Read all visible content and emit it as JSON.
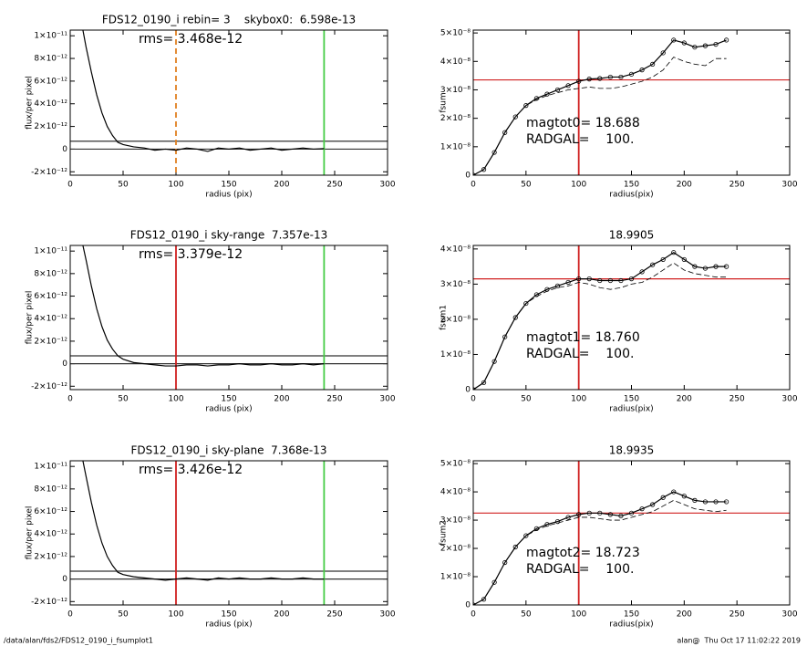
{
  "chart_data": [
    {
      "type": "line",
      "title": "FDS12_0190_i rebin= 3    skybox0:  6.598e-13",
      "annotations": [
        "rms= 3.468e-12"
      ],
      "xlabel": "radius (pix)",
      "ylabel": "flux/per pixel",
      "xlim": [
        0,
        300
      ],
      "xticks": [
        0,
        50,
        100,
        150,
        200,
        250,
        300
      ],
      "ylim": [
        -2.3e-12,
        1.05e-11
      ],
      "yticks": [
        {
          "value": -2e-12,
          "label": "-2×10⁻¹²"
        },
        0,
        {
          "value": 2e-12,
          "label": "2×10⁻¹²"
        },
        {
          "value": 4e-12,
          "label": "4×10⁻¹²"
        },
        {
          "value": 6e-12,
          "label": "6×10⁻¹²"
        },
        {
          "value": 8e-12,
          "label": "8×10⁻¹²"
        },
        {
          "value": 1e-11,
          "label": "1×10⁻¹¹"
        }
      ],
      "x": [
        12,
        15,
        20,
        25,
        30,
        35,
        40,
        45,
        50,
        60,
        70,
        80,
        90,
        100,
        110,
        120,
        130,
        140,
        150,
        160,
        170,
        180,
        190,
        200,
        210,
        220,
        230,
        240
      ],
      "series": [
        {
          "color": "#000000",
          "values": [
            1.05e-11,
            9e-12,
            6.8e-12,
            4.8e-12,
            3.2e-12,
            2e-12,
            1.2e-12,
            6e-13,
            4e-13,
            2e-13,
            1e-13,
            -1e-13,
            0,
            -1e-13,
            1e-13,
            0,
            -2e-13,
            1e-13,
            0,
            1e-13,
            -1e-13,
            0,
            1e-13,
            -1e-13,
            0,
            1e-13,
            0,
            5e-14
          ]
        }
      ],
      "hlines": [
        {
          "value": 7e-13,
          "color": "#333333"
        },
        {
          "value": 0,
          "color": "#333333"
        }
      ],
      "vlines": [
        {
          "value": 100,
          "color": "#e08020",
          "dash": true
        },
        {
          "value": 240,
          "color": "#44cc44"
        }
      ]
    },
    {
      "type": "line",
      "annotations": [
        "magtot0= 18.688",
        "RADGAL=    100."
      ],
      "xlabel": "radius(pix)",
      "ylabel": "fsum",
      "xlim": [
        0,
        300
      ],
      "xticks": [
        0,
        50,
        100,
        150,
        200,
        250,
        300
      ],
      "ylim": [
        0,
        5.1e-08
      ],
      "yticks": [
        0,
        {
          "value": 1e-08,
          "label": "1×10⁻⁸"
        },
        {
          "value": 2e-08,
          "label": "2×10⁻⁸"
        },
        {
          "value": 3e-08,
          "label": "3×10⁻⁸"
        },
        {
          "value": 4e-08,
          "label": "4×10⁻⁸"
        },
        {
          "value": 5e-08,
          "label": "5×10⁻⁸"
        }
      ],
      "x": [
        0,
        10,
        20,
        30,
        40,
        50,
        60,
        70,
        80,
        90,
        100,
        110,
        120,
        130,
        140,
        150,
        160,
        170,
        180,
        190,
        200,
        210,
        220,
        230,
        240
      ],
      "series": [
        {
          "color": "#000000",
          "marker": "circle",
          "values": [
            0,
            2e-09,
            8e-09,
            1.5e-08,
            2.05e-08,
            2.45e-08,
            2.7e-08,
            2.85e-08,
            3e-08,
            3.15e-08,
            3.3e-08,
            3.38e-08,
            3.4e-08,
            3.45e-08,
            3.45e-08,
            3.55e-08,
            3.7e-08,
            3.9e-08,
            4.3e-08,
            4.75e-08,
            4.65e-08,
            4.5e-08,
            4.55e-08,
            4.6e-08,
            4.75e-08
          ]
        },
        {
          "color": "#000000",
          "dash": true,
          "values": [
            0,
            2e-09,
            8e-09,
            1.5e-08,
            2.05e-08,
            2.45e-08,
            2.65e-08,
            2.8e-08,
            2.9e-08,
            3e-08,
            3.05e-08,
            3.1e-08,
            3.05e-08,
            3.05e-08,
            3.1e-08,
            3.2e-08,
            3.3e-08,
            3.45e-08,
            3.7e-08,
            4.15e-08,
            4e-08,
            3.9e-08,
            3.85e-08,
            4.1e-08,
            4.1e-08
          ]
        }
      ],
      "hlines": [
        {
          "value": 3.35e-08,
          "color": "#d02020"
        }
      ],
      "vlines": [
        {
          "value": 100,
          "color": "#d02020"
        }
      ]
    },
    {
      "type": "line",
      "title": "FDS12_0190_i sky-range  7.357e-13",
      "annotations": [
        "rms= 3.379e-12"
      ],
      "xlabel": "radius (pix)",
      "ylabel": "flux/per pixel",
      "xlim": [
        0,
        300
      ],
      "xticks": [
        0,
        50,
        100,
        150,
        200,
        250,
        300
      ],
      "ylim": [
        -2.3e-12,
        1.05e-11
      ],
      "yticks": [
        {
          "value": -2e-12,
          "label": "-2×10⁻¹²"
        },
        0,
        {
          "value": 2e-12,
          "label": "2×10⁻¹²"
        },
        {
          "value": 4e-12,
          "label": "4×10⁻¹²"
        },
        {
          "value": 6e-12,
          "label": "6×10⁻¹²"
        },
        {
          "value": 8e-12,
          "label": "8×10⁻¹²"
        },
        {
          "value": 1e-11,
          "label": "1×10⁻¹¹"
        }
      ],
      "x": [
        12,
        15,
        20,
        25,
        30,
        35,
        40,
        45,
        50,
        60,
        70,
        80,
        90,
        100,
        110,
        120,
        130,
        140,
        150,
        160,
        170,
        180,
        190,
        200,
        210,
        220,
        230,
        240
      ],
      "series": [
        {
          "color": "#000000",
          "values": [
            1.05e-11,
            9.2e-12,
            6.9e-12,
            4.9e-12,
            3.3e-12,
            2.1e-12,
            1.3e-12,
            7e-13,
            4e-13,
            1e-13,
            0,
            -1e-13,
            -2e-13,
            -2e-13,
            -1e-13,
            -1e-13,
            -2e-13,
            -1e-13,
            -1e-13,
            0,
            -1e-13,
            -1e-13,
            0,
            -1e-13,
            -1e-13,
            0,
            -1e-13,
            0
          ]
        }
      ],
      "hlines": [
        {
          "value": 7e-13,
          "color": "#333333"
        },
        {
          "value": 0,
          "color": "#333333"
        }
      ],
      "vlines": [
        {
          "value": 100,
          "color": "#d02020"
        },
        {
          "value": 240,
          "color": "#44cc44"
        }
      ]
    },
    {
      "type": "line",
      "title": "18.9905",
      "annotations": [
        "magtot1= 18.760",
        "RADGAL=    100."
      ],
      "xlabel": "radius(pix)",
      "ylabel": "fsum1",
      "xlim": [
        0,
        300
      ],
      "xticks": [
        0,
        50,
        100,
        150,
        200,
        250,
        300
      ],
      "ylim": [
        0,
        4.1e-08
      ],
      "yticks": [
        0,
        {
          "value": 1e-08,
          "label": "1×10⁻⁸"
        },
        {
          "value": 2e-08,
          "label": "2×10⁻⁸"
        },
        {
          "value": 3e-08,
          "label": "3×10⁻⁸"
        },
        {
          "value": 4e-08,
          "label": "4×10⁻⁸"
        }
      ],
      "x": [
        0,
        10,
        20,
        30,
        40,
        50,
        60,
        70,
        80,
        90,
        100,
        110,
        120,
        130,
        140,
        150,
        160,
        170,
        180,
        190,
        200,
        210,
        220,
        230,
        240
      ],
      "series": [
        {
          "color": "#000000",
          "marker": "circle",
          "values": [
            0,
            2e-09,
            8e-09,
            1.5e-08,
            2.05e-08,
            2.45e-08,
            2.7e-08,
            2.85e-08,
            2.95e-08,
            3.05e-08,
            3.15e-08,
            3.15e-08,
            3.1e-08,
            3.1e-08,
            3.1e-08,
            3.15e-08,
            3.35e-08,
            3.55e-08,
            3.7e-08,
            3.9e-08,
            3.7e-08,
            3.5e-08,
            3.45e-08,
            3.5e-08,
            3.5e-08
          ]
        },
        {
          "color": "#000000",
          "dash": true,
          "values": [
            0,
            2e-09,
            8e-09,
            1.5e-08,
            2.05e-08,
            2.45e-08,
            2.65e-08,
            2.8e-08,
            2.9e-08,
            2.95e-08,
            3.05e-08,
            3e-08,
            2.9e-08,
            2.85e-08,
            2.9e-08,
            3e-08,
            3.05e-08,
            3.2e-08,
            3.4e-08,
            3.6e-08,
            3.4e-08,
            3.3e-08,
            3.25e-08,
            3.2e-08,
            3.2e-08
          ]
        }
      ],
      "hlines": [
        {
          "value": 3.15e-08,
          "color": "#d02020"
        }
      ],
      "vlines": [
        {
          "value": 100,
          "color": "#d02020"
        }
      ]
    },
    {
      "type": "line",
      "title": "FDS12_0190_i sky-plane  7.368e-13",
      "annotations": [
        "rms= 3.426e-12"
      ],
      "xlabel": "radius (pix)",
      "ylabel": "flux/per pixel",
      "xlim": [
        0,
        300
      ],
      "xticks": [
        0,
        50,
        100,
        150,
        200,
        250,
        300
      ],
      "ylim": [
        -2.3e-12,
        1.05e-11
      ],
      "yticks": [
        {
          "value": -2e-12,
          "label": "-2×10⁻¹²"
        },
        0,
        {
          "value": 2e-12,
          "label": "2×10⁻¹²"
        },
        {
          "value": 4e-12,
          "label": "4×10⁻¹²"
        },
        {
          "value": 6e-12,
          "label": "6×10⁻¹²"
        },
        {
          "value": 8e-12,
          "label": "8×10⁻¹²"
        },
        {
          "value": 1e-11,
          "label": "1×10⁻¹¹"
        }
      ],
      "x": [
        12,
        15,
        20,
        25,
        30,
        35,
        40,
        45,
        50,
        60,
        70,
        80,
        90,
        100,
        110,
        120,
        130,
        140,
        150,
        160,
        170,
        180,
        190,
        200,
        210,
        220,
        230,
        240
      ],
      "series": [
        {
          "color": "#000000",
          "values": [
            1.05e-11,
            9.1e-12,
            6.8e-12,
            4.8e-12,
            3.2e-12,
            2e-12,
            1.2e-12,
            6e-13,
            4e-13,
            2e-13,
            1e-13,
            0,
            -1e-13,
            0,
            1e-13,
            0,
            -1e-13,
            1e-13,
            0,
            1e-13,
            0,
            0,
            1e-13,
            0,
            0,
            1e-13,
            0,
            0
          ]
        }
      ],
      "hlines": [
        {
          "value": 7e-13,
          "color": "#333333"
        },
        {
          "value": 0,
          "color": "#333333"
        }
      ],
      "vlines": [
        {
          "value": 100,
          "color": "#d02020"
        },
        {
          "value": 240,
          "color": "#44cc44"
        }
      ]
    },
    {
      "type": "line",
      "title": "18.9935",
      "annotations": [
        "magtot2= 18.723",
        "RADGAL=    100."
      ],
      "xlabel": "radius(pix)",
      "ylabel": "fsum2",
      "xlim": [
        0,
        300
      ],
      "xticks": [
        0,
        50,
        100,
        150,
        200,
        250,
        300
      ],
      "ylim": [
        0,
        5.1e-08
      ],
      "yticks": [
        0,
        {
          "value": 1e-08,
          "label": "1×10⁻⁸"
        },
        {
          "value": 2e-08,
          "label": "2×10⁻⁸"
        },
        {
          "value": 3e-08,
          "label": "3×10⁻⁸"
        },
        {
          "value": 4e-08,
          "label": "4×10⁻⁸"
        },
        {
          "value": 5e-08,
          "label": "5×10⁻⁸"
        }
      ],
      "x": [
        0,
        10,
        20,
        30,
        40,
        50,
        60,
        70,
        80,
        90,
        100,
        110,
        120,
        130,
        140,
        150,
        160,
        170,
        180,
        190,
        200,
        210,
        220,
        230,
        240
      ],
      "series": [
        {
          "color": "#000000",
          "marker": "circle",
          "values": [
            0,
            2e-09,
            8e-09,
            1.5e-08,
            2.05e-08,
            2.45e-08,
            2.7e-08,
            2.85e-08,
            2.95e-08,
            3.1e-08,
            3.2e-08,
            3.25e-08,
            3.25e-08,
            3.2e-08,
            3.15e-08,
            3.25e-08,
            3.4e-08,
            3.55e-08,
            3.8e-08,
            4e-08,
            3.85e-08,
            3.7e-08,
            3.65e-08,
            3.65e-08,
            3.65e-08
          ]
        },
        {
          "color": "#000000",
          "dash": true,
          "values": [
            0,
            2e-09,
            8e-09,
            1.5e-08,
            2.05e-08,
            2.45e-08,
            2.65e-08,
            2.8e-08,
            2.9e-08,
            3e-08,
            3.1e-08,
            3.1e-08,
            3.05e-08,
            3e-08,
            3e-08,
            3.1e-08,
            3.2e-08,
            3.3e-08,
            3.5e-08,
            3.7e-08,
            3.55e-08,
            3.4e-08,
            3.35e-08,
            3.3e-08,
            3.35e-08
          ]
        }
      ],
      "hlines": [
        {
          "value": 3.25e-08,
          "color": "#d02020"
        }
      ],
      "vlines": [
        {
          "value": 100,
          "color": "#d02020"
        }
      ]
    }
  ],
  "footer": {
    "left": "/data/alan/fds2/FDS12_0190_i_fsumplot1",
    "right": "alan@  Thu Oct 17 11:02:22 2019"
  }
}
